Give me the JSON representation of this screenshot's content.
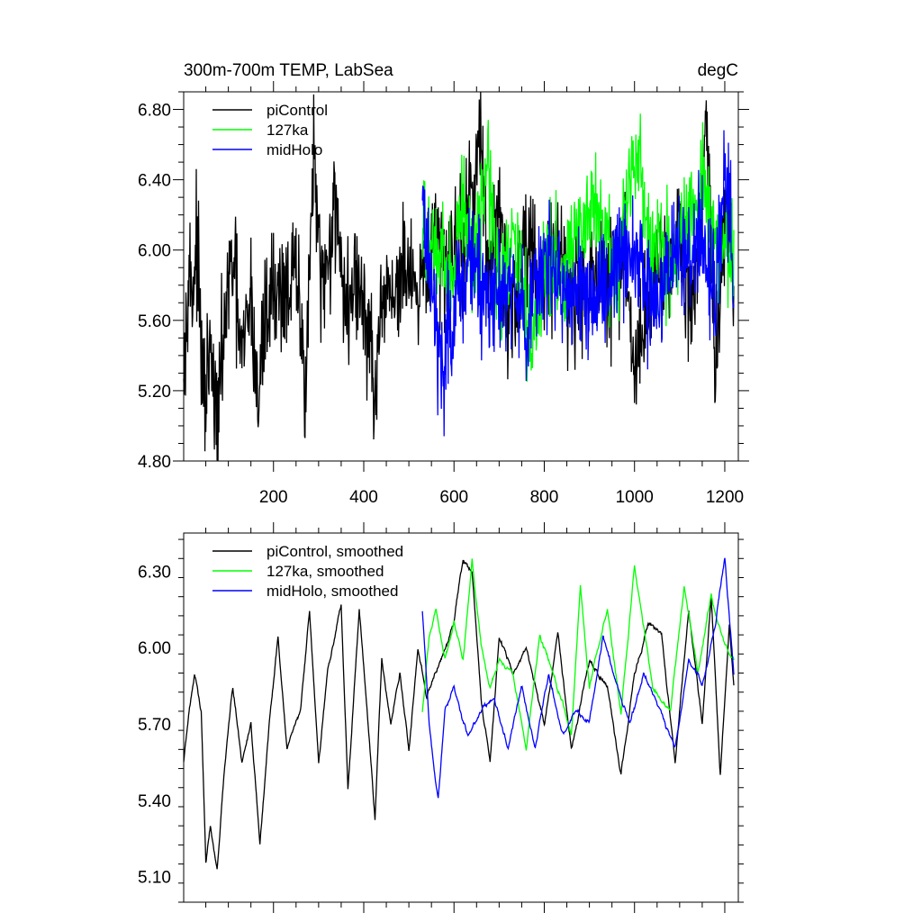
{
  "chart_data": [
    {
      "type": "line",
      "title": "300m-700m TEMP, LabSea",
      "units": "degC",
      "xlabel": "",
      "ylabel": "",
      "xlim": [
        1,
        1230
      ],
      "ylim": [
        4.8,
        6.9
      ],
      "xticks": [
        200,
        400,
        600,
        800,
        1000,
        1200
      ],
      "xtick_labels": [
        "200",
        "400",
        "600",
        "800",
        "1000",
        "1200"
      ],
      "yticks": [
        4.8,
        5.2,
        5.6,
        6.0,
        6.4,
        6.8
      ],
      "ytick_labels": [
        "4.80",
        "5.20",
        "5.60",
        "6.00",
        "6.40",
        "6.80"
      ],
      "legend_position": "top-left",
      "series": [
        {
          "name": "piControl",
          "color": "#000000",
          "x_range": [
            1,
            1220
          ],
          "mean": 5.85,
          "amplitude": 0.28,
          "keypoints": [
            [
              1,
              5.6
            ],
            [
              5,
              5.45
            ],
            [
              10,
              5.95
            ],
            [
              20,
              5.75
            ],
            [
              30,
              6.05
            ],
            [
              45,
              5.1
            ],
            [
              60,
              5.4
            ],
            [
              75,
              4.97
            ],
            [
              90,
              5.55
            ],
            [
              110,
              5.95
            ],
            [
              130,
              5.35
            ],
            [
              150,
              5.75
            ],
            [
              165,
              5.1
            ],
            [
              180,
              5.6
            ],
            [
              200,
              5.8
            ],
            [
              215,
              5.75
            ],
            [
              250,
              5.85
            ],
            [
              270,
              5.25
            ],
            [
              290,
              6.55
            ],
            [
              305,
              5.7
            ],
            [
              340,
              6.3
            ],
            [
              360,
              5.6
            ],
            [
              380,
              5.85
            ],
            [
              410,
              5.55
            ],
            [
              425,
              5.15
            ],
            [
              450,
              5.8
            ],
            [
              470,
              5.75
            ],
            [
              500,
              5.9
            ],
            [
              520,
              5.6
            ],
            [
              540,
              5.95
            ],
            [
              560,
              6.05
            ],
            [
              580,
              5.9
            ],
            [
              600,
              6.05
            ],
            [
              620,
              6.0
            ],
            [
              640,
              6.35
            ],
            [
              655,
              6.65
            ],
            [
              680,
              5.85
            ],
            [
              700,
              6.2
            ],
            [
              720,
              5.6
            ],
            [
              760,
              6.1
            ],
            [
              800,
              5.8
            ],
            [
              830,
              6.1
            ],
            [
              860,
              5.7
            ],
            [
              900,
              5.85
            ],
            [
              940,
              5.8
            ],
            [
              980,
              5.95
            ],
            [
              1000,
              5.3
            ],
            [
              1040,
              5.85
            ],
            [
              1080,
              5.95
            ],
            [
              1100,
              6.15
            ],
            [
              1130,
              5.6
            ],
            [
              1160,
              6.75
            ],
            [
              1180,
              5.3
            ],
            [
              1200,
              6.3
            ],
            [
              1220,
              5.9
            ]
          ]
        },
        {
          "name": "127ka",
          "color": "#00ff00",
          "x_range": [
            530,
            1220
          ],
          "mean": 5.92,
          "amplitude": 0.24,
          "keypoints": [
            [
              530,
              6.1
            ],
            [
              560,
              5.95
            ],
            [
              600,
              5.85
            ],
            [
              620,
              6.3
            ],
            [
              640,
              5.9
            ],
            [
              660,
              6.25
            ],
            [
              675,
              6.5
            ],
            [
              700,
              5.8
            ],
            [
              740,
              6.05
            ],
            [
              770,
              5.4
            ],
            [
              800,
              5.95
            ],
            [
              840,
              5.9
            ],
            [
              880,
              6.1
            ],
            [
              920,
              6.2
            ],
            [
              960,
              5.85
            ],
            [
              1000,
              6.62
            ],
            [
              1040,
              6.0
            ],
            [
              1080,
              5.9
            ],
            [
              1120,
              6.1
            ],
            [
              1150,
              6.4
            ],
            [
              1180,
              6.05
            ],
            [
              1220,
              5.95
            ]
          ]
        },
        {
          "name": "midHolo",
          "color": "#0000ff",
          "x_range": [
            530,
            1220
          ],
          "mean": 5.85,
          "amplitude": 0.27,
          "keypoints": [
            [
              530,
              6.3
            ],
            [
              560,
              5.6
            ],
            [
              575,
              5.3
            ],
            [
              600,
              5.75
            ],
            [
              640,
              5.9
            ],
            [
              680,
              5.7
            ],
            [
              720,
              5.85
            ],
            [
              760,
              5.6
            ],
            [
              800,
              5.95
            ],
            [
              840,
              5.75
            ],
            [
              880,
              5.85
            ],
            [
              920,
              5.7
            ],
            [
              960,
              6.0
            ],
            [
              1000,
              5.9
            ],
            [
              1040,
              5.75
            ],
            [
              1080,
              5.9
            ],
            [
              1120,
              6.0
            ],
            [
              1150,
              6.1
            ],
            [
              1180,
              5.7
            ],
            [
              1200,
              6.5
            ],
            [
              1220,
              5.85
            ]
          ]
        }
      ]
    },
    {
      "type": "line",
      "title": "",
      "units": "",
      "xlabel": "",
      "ylabel": "",
      "xlim": [
        1,
        1230
      ],
      "ylim": [
        5.0,
        6.45
      ],
      "xticks": [
        200,
        400,
        600,
        800,
        1000,
        1200
      ],
      "xtick_labels": [
        "",
        "",
        "",
        "",
        "",
        ""
      ],
      "yticks": [
        5.1,
        5.4,
        5.7,
        6.0,
        6.3
      ],
      "ytick_labels": [
        "5.10",
        "5.40",
        "5.70",
        "6.00",
        "6.30"
      ],
      "legend_position": "top-left",
      "series": [
        {
          "name": "piControl, smoothed",
          "color": "#000000",
          "x_range": [
            1,
            1220
          ],
          "mean": 5.85,
          "amplitude": 0.13,
          "keypoints": [
            [
              1,
              5.55
            ],
            [
              10,
              5.7
            ],
            [
              25,
              5.9
            ],
            [
              40,
              5.75
            ],
            [
              50,
              5.15
            ],
            [
              60,
              5.3
            ],
            [
              75,
              5.13
            ],
            [
              90,
              5.5
            ],
            [
              110,
              5.85
            ],
            [
              130,
              5.55
            ],
            [
              150,
              5.7
            ],
            [
              170,
              5.22
            ],
            [
              190,
              5.7
            ],
            [
              210,
              6.03
            ],
            [
              230,
              5.6
            ],
            [
              260,
              5.75
            ],
            [
              280,
              6.15
            ],
            [
              300,
              5.55
            ],
            [
              320,
              5.9
            ],
            [
              350,
              6.17
            ],
            [
              365,
              5.45
            ],
            [
              390,
              6.15
            ],
            [
              410,
              5.7
            ],
            [
              425,
              5.33
            ],
            [
              440,
              5.95
            ],
            [
              460,
              5.7
            ],
            [
              480,
              5.9
            ],
            [
              500,
              5.6
            ],
            [
              520,
              6.0
            ],
            [
              540,
              5.8
            ],
            [
              560,
              5.9
            ],
            [
              580,
              6.0
            ],
            [
              600,
              6.1
            ],
            [
              620,
              6.35
            ],
            [
              640,
              6.3
            ],
            [
              660,
              5.8
            ],
            [
              680,
              5.55
            ],
            [
              700,
              6.05
            ],
            [
              730,
              5.9
            ],
            [
              760,
              6.0
            ],
            [
              800,
              5.7
            ],
            [
              830,
              6.05
            ],
            [
              860,
              5.6
            ],
            [
              900,
              5.95
            ],
            [
              940,
              5.85
            ],
            [
              970,
              5.5
            ],
            [
              1000,
              5.9
            ],
            [
              1030,
              6.1
            ],
            [
              1060,
              6.05
            ],
            [
              1090,
              5.55
            ],
            [
              1120,
              6.15
            ],
            [
              1150,
              5.7
            ],
            [
              1170,
              6.2
            ],
            [
              1190,
              5.5
            ],
            [
              1210,
              6.1
            ],
            [
              1220,
              5.85
            ]
          ]
        },
        {
          "name": "127ka, smoothed",
          "color": "#00ff00",
          "x_range": [
            530,
            1220
          ],
          "mean": 5.92,
          "amplitude": 0.13,
          "keypoints": [
            [
              530,
              5.75
            ],
            [
              545,
              6.05
            ],
            [
              560,
              6.15
            ],
            [
              580,
              5.95
            ],
            [
              600,
              6.1
            ],
            [
              620,
              5.95
            ],
            [
              640,
              6.35
            ],
            [
              660,
              6.0
            ],
            [
              680,
              5.85
            ],
            [
              700,
              5.95
            ],
            [
              730,
              5.9
            ],
            [
              760,
              5.6
            ],
            [
              790,
              6.05
            ],
            [
              820,
              5.9
            ],
            [
              860,
              5.65
            ],
            [
              880,
              6.25
            ],
            [
              900,
              5.85
            ],
            [
              940,
              6.15
            ],
            [
              970,
              5.75
            ],
            [
              1000,
              6.32
            ],
            [
              1040,
              5.85
            ],
            [
              1080,
              5.75
            ],
            [
              1110,
              6.25
            ],
            [
              1140,
              5.9
            ],
            [
              1170,
              6.2
            ],
            [
              1200,
              6.0
            ],
            [
              1220,
              5.95
            ]
          ]
        },
        {
          "name": "midHolo, smoothed",
          "color": "#0000ff",
          "x_range": [
            530,
            1220
          ],
          "mean": 5.82,
          "amplitude": 0.13,
          "keypoints": [
            [
              530,
              6.15
            ],
            [
              545,
              5.7
            ],
            [
              565,
              5.4
            ],
            [
              580,
              5.75
            ],
            [
              600,
              5.85
            ],
            [
              630,
              5.65
            ],
            [
              660,
              5.75
            ],
            [
              690,
              5.8
            ],
            [
              720,
              5.6
            ],
            [
              750,
              5.85
            ],
            [
              780,
              5.6
            ],
            [
              810,
              5.9
            ],
            [
              840,
              5.65
            ],
            [
              870,
              5.75
            ],
            [
              900,
              5.7
            ],
            [
              930,
              6.05
            ],
            [
              960,
              5.85
            ],
            [
              990,
              5.7
            ],
            [
              1020,
              5.9
            ],
            [
              1060,
              5.75
            ],
            [
              1090,
              5.6
            ],
            [
              1120,
              5.95
            ],
            [
              1150,
              5.85
            ],
            [
              1180,
              6.1
            ],
            [
              1200,
              6.35
            ],
            [
              1220,
              5.9
            ]
          ]
        }
      ]
    }
  ]
}
